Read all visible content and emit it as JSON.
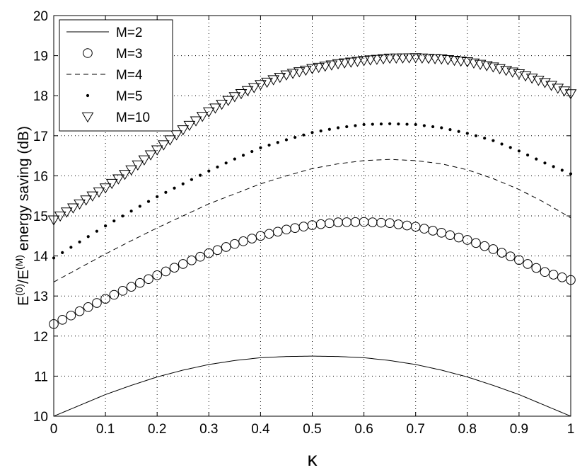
{
  "chart_data": {
    "type": "line",
    "title": "",
    "xlabel": "κ",
    "ylabel": {
      "base1": "E",
      "sup1": "(0)",
      "slash": "/E",
      "sup2": "(M)",
      "rest": " energy saving (dB)"
    },
    "xlim": [
      0,
      1
    ],
    "ylim": [
      10,
      20
    ],
    "xticks": [
      0,
      0.1,
      0.2,
      0.3,
      0.4,
      0.5,
      0.6,
      0.7,
      0.8,
      0.9,
      1
    ],
    "xtick_labels": [
      "0",
      "0.1",
      "0.2",
      "0.3",
      "0.4",
      "0.5",
      "0.6",
      "0.7",
      "0.8",
      "0.9",
      "1"
    ],
    "yticks": [
      10,
      11,
      12,
      13,
      14,
      15,
      16,
      17,
      18,
      19,
      20
    ],
    "ytick_labels": [
      "10",
      "11",
      "12",
      "13",
      "14",
      "15",
      "16",
      "17",
      "18",
      "19",
      "20"
    ],
    "grid": true,
    "legend_position": "top-left",
    "x": [
      0,
      0.05,
      0.1,
      0.15,
      0.2,
      0.25,
      0.3,
      0.35,
      0.4,
      0.45,
      0.5,
      0.55,
      0.6,
      0.65,
      0.7,
      0.75,
      0.8,
      0.85,
      0.9,
      0.95,
      1
    ],
    "series": [
      {
        "name": "M=2",
        "style": "solid",
        "values": [
          10.0,
          10.27,
          10.54,
          10.77,
          10.98,
          11.15,
          11.29,
          11.39,
          11.46,
          11.49,
          11.5,
          11.49,
          11.46,
          11.39,
          11.29,
          11.15,
          10.98,
          10.77,
          10.54,
          10.27,
          10.0
        ]
      },
      {
        "name": "M=3",
        "style": "circle",
        "values": [
          12.3,
          12.62,
          12.93,
          13.23,
          13.52,
          13.8,
          14.07,
          14.3,
          14.5,
          14.66,
          14.77,
          14.84,
          14.85,
          14.82,
          14.73,
          14.58,
          14.4,
          14.17,
          13.9,
          13.6,
          13.4
        ]
      },
      {
        "name": "M=4",
        "style": "dashed",
        "values": [
          13.35,
          13.7,
          14.05,
          14.38,
          14.7,
          15.0,
          15.3,
          15.55,
          15.8,
          16.0,
          16.18,
          16.3,
          16.38,
          16.41,
          16.38,
          16.3,
          16.15,
          15.93,
          15.66,
          15.33,
          14.95
        ]
      },
      {
        "name": "M=5",
        "style": "dot",
        "values": [
          13.95,
          14.35,
          14.75,
          15.12,
          15.48,
          15.8,
          16.12,
          16.42,
          16.7,
          16.9,
          17.08,
          17.2,
          17.28,
          17.3,
          17.28,
          17.2,
          17.06,
          16.88,
          16.62,
          16.32,
          16.05
        ]
      },
      {
        "name": "M=10",
        "style": "triangle",
        "values": [
          14.9,
          15.3,
          15.7,
          16.15,
          16.65,
          17.15,
          17.6,
          17.98,
          18.28,
          18.52,
          18.68,
          18.8,
          18.88,
          18.94,
          18.95,
          18.92,
          18.85,
          18.72,
          18.55,
          18.33,
          18.05
        ]
      }
    ]
  }
}
